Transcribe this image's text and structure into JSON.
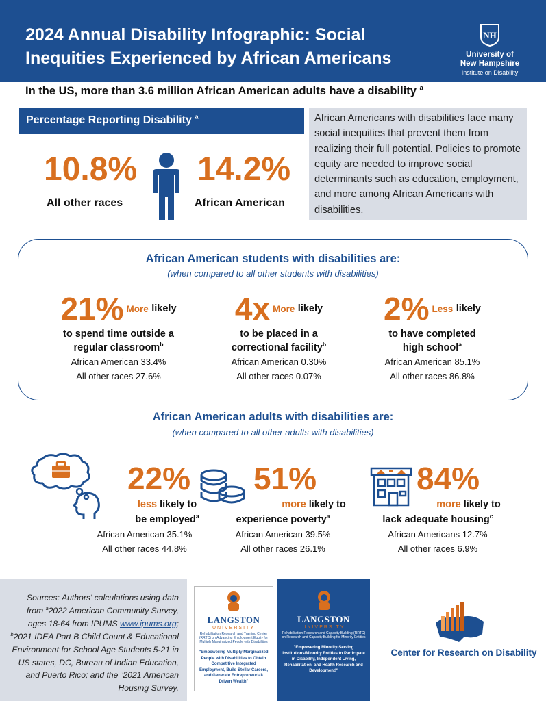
{
  "header": {
    "title": "2024 Annual Disability Infographic: Social Inequities Experienced by African Americans",
    "logo_initials": "NH",
    "logo_name_line1": "University of",
    "logo_name_line2": "New Hampshire",
    "logo_sub": "Institute on Disability"
  },
  "subhead": {
    "text": "In the US, more than 3.6 million African American adults have a disability",
    "note": "a"
  },
  "percentage": {
    "banner_label": "Percentage Reporting Disability",
    "banner_note": "a",
    "left_value": "10.8%",
    "left_label": "All other races",
    "right_value": "14.2%",
    "right_label": "African American"
  },
  "intro_text": "African Americans with disabilities face many social inequities that prevent them from realizing their full potential.  Policies to promote equity are needed to improve social determinants such as education, employment, and more among African Americans with disabilities.",
  "students": {
    "title": "African American students with disabilities are:",
    "subtitle": "(when compared to all other students with disabilities)",
    "items": [
      {
        "number": "21%",
        "modifier": "More",
        "modifier_rest": "likely",
        "desc_line1": "to spend time outside a",
        "desc_line2": "regular classroom",
        "note": "b",
        "aa": "African American 33.4%",
        "other": "All other races 27.6%"
      },
      {
        "number": "4x",
        "modifier": "More",
        "modifier_rest": "likely",
        "desc_line1": "to be placed in a",
        "desc_line2": "correctional facility",
        "note": "b",
        "aa": "African American 0.30%",
        "other": "All other races 0.07%"
      },
      {
        "number": "2%",
        "modifier": "Less",
        "modifier_rest": "likely",
        "desc_line1": "to have completed",
        "desc_line2": "high school",
        "note": "a",
        "aa": "African American 85.1%",
        "other": "All other races 86.8%"
      }
    ]
  },
  "adults": {
    "title": "African American adults with disabilities are:",
    "subtitle": "(when compared to all other adults with disabilities)",
    "items": [
      {
        "number": "22%",
        "modifier": "less",
        "rest_line1": "likely to",
        "desc_line2": "be employed",
        "note": "a",
        "aa": "African American 35.1%",
        "other": "All other races 44.8%",
        "icon": "employment-thought-icon"
      },
      {
        "number": "51%",
        "modifier": "more",
        "rest_line1": "likely to",
        "desc_line2": "experience poverty",
        "note": "a",
        "aa": "African American 39.5%",
        "other": "All other races 26.1%",
        "icon": "coins-icon"
      },
      {
        "number": "84%",
        "modifier": "more",
        "rest_line1": "likely to",
        "desc_line2": "lack adequate housing",
        "note": "c",
        "aa": "African Americans 12.7%",
        "other": "All other races 6.9%",
        "icon": "house-icon"
      }
    ]
  },
  "footer": {
    "sources_pre": "Sources: Authors' calculations using data from ",
    "sources_a": "a",
    "sources_1": "2022 American Community Survey, ages 18-64 from IPUMS ",
    "sources_link": "www.ipums.org",
    "sources_2": "; ",
    "sources_b": "b",
    "sources_3": "2021 IDEA Part B Child Count & Educational Environment for School Age Students 5-21 in US states, DC, Bureau of Indian Education, and Puerto Rico; and the ",
    "sources_c": "c",
    "sources_4": "2021 American Housing Survey.",
    "langston1": {
      "name": "LANGSTON",
      "university": "UNIVERSITY",
      "center": "Rehabilitation Research and Training Center (RRTC) on Advancing Employment Equity for Multiply Marginalized People with Disabilities",
      "quote": "\"Empowering Multiply Marginalized People with Disabilities to Obtain Competitive Integrated Employment, Build Stellar Careers, and Generate Entrepreneurial-Driven Wealth\""
    },
    "langston2": {
      "name": "LANGSTON",
      "university": "UNIVERSITY",
      "center": "Rehabilitation Research and Capacity Building (RRTC) on Research and Capacity Building for Minority Entities",
      "quote": "\"Empowering Minority-Serving Institutions/Minority Entities to Participate in Disability, Independent Living, Rehabilitation, and Health Research and Development!\""
    },
    "crd_name": "Center for Research on Disability"
  },
  "colors": {
    "brand_blue": "#1d4f91",
    "accent_orange": "#d86f1f",
    "panel_gray": "#d9dde5"
  }
}
